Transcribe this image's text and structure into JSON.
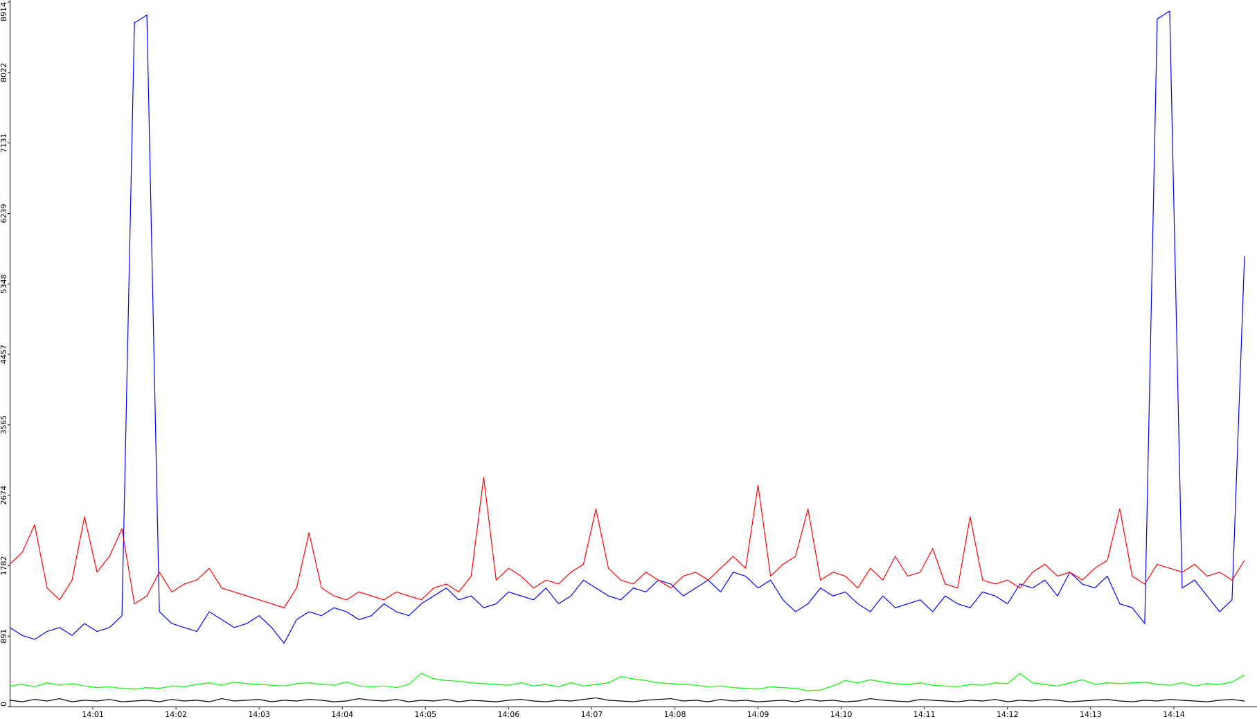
{
  "chart_data": {
    "type": "line",
    "x": [
      0,
      0.15,
      0.3,
      0.45,
      0.6,
      0.75,
      0.9,
      1.05,
      1.2,
      1.35,
      1.5,
      1.65,
      1.8,
      1.95,
      2.1,
      2.25,
      2.4,
      2.55,
      2.7,
      2.85,
      3,
      3.15,
      3.3,
      3.45,
      3.6,
      3.75,
      3.9,
      4.05,
      4.2,
      4.35,
      4.5,
      4.65,
      4.8,
      4.95,
      5.1,
      5.25,
      5.4,
      5.55,
      5.7,
      5.85,
      6,
      6.15,
      6.3,
      6.45,
      6.6,
      6.75,
      6.9,
      7.05,
      7.2,
      7.35,
      7.5,
      7.65,
      7.8,
      7.95,
      8.1,
      8.25,
      8.4,
      8.55,
      8.7,
      8.85,
      9,
      9.15,
      9.3,
      9.45,
      9.6,
      9.75,
      9.9,
      10.05,
      10.2,
      10.35,
      10.5,
      10.65,
      10.8,
      10.95,
      11.1,
      11.25,
      11.4,
      11.55,
      11.7,
      11.85,
      12,
      12.15,
      12.3,
      12.45,
      12.6,
      12.75,
      12.9,
      13.05,
      13.2,
      13.35,
      13.5,
      13.65,
      13.8,
      13.95,
      14.1,
      14.25,
      14.4,
      14.55,
      14.7,
      14.85
    ],
    "series": [
      {
        "color": "#ff0000",
        "values": [
          1800,
          1950,
          2300,
          1500,
          1350,
          1600,
          2400,
          1700,
          1900,
          2250,
          1300,
          1400,
          1700,
          1450,
          1550,
          1600,
          1750,
          1500,
          1450,
          1400,
          1350,
          1300,
          1250,
          1500,
          2200,
          1500,
          1400,
          1350,
          1450,
          1400,
          1350,
          1450,
          1400,
          1350,
          1500,
          1550,
          1450,
          1650,
          2900,
          1600,
          1750,
          1650,
          1500,
          1600,
          1550,
          1700,
          1800,
          2500,
          1750,
          1600,
          1550,
          1700,
          1600,
          1500,
          1650,
          1700,
          1600,
          1750,
          1900,
          1750,
          2800,
          1650,
          1800,
          1900,
          2500,
          1600,
          1700,
          1650,
          1500,
          1750,
          1600,
          1900,
          1650,
          1700,
          2000,
          1550,
          1500,
          2400,
          1600,
          1550,
          1600,
          1500,
          1700,
          1800,
          1650,
          1700,
          1600,
          1750,
          1850,
          2500,
          1650,
          1550,
          1800,
          1750,
          1700,
          1800,
          1650,
          1700,
          1600,
          1850
        ]
      },
      {
        "color": "#0000ff",
        "values": [
          1000,
          900,
          850,
          950,
          1000,
          900,
          1050,
          950,
          1000,
          1150,
          8650,
          8750,
          1200,
          1050,
          1000,
          950,
          1200,
          1100,
          1000,
          1050,
          1150,
          1000,
          800,
          1100,
          1200,
          1150,
          1250,
          1200,
          1100,
          1150,
          1300,
          1200,
          1150,
          1300,
          1400,
          1500,
          1350,
          1400,
          1250,
          1300,
          1450,
          1400,
          1350,
          1500,
          1300,
          1400,
          1600,
          1500,
          1400,
          1350,
          1500,
          1450,
          1600,
          1550,
          1400,
          1500,
          1600,
          1450,
          1700,
          1650,
          1500,
          1600,
          1350,
          1200,
          1300,
          1500,
          1400,
          1450,
          1300,
          1200,
          1400,
          1250,
          1300,
          1350,
          1200,
          1400,
          1300,
          1250,
          1450,
          1400,
          1300,
          1550,
          1500,
          1600,
          1400,
          1700,
          1550,
          1500,
          1650,
          1300,
          1250,
          1050,
          8700,
          8800,
          1500,
          1600,
          1400,
          1200,
          1350,
          5700
        ]
      },
      {
        "color": "#00ff00",
        "values": [
          260,
          280,
          250,
          300,
          270,
          290,
          260,
          240,
          250,
          230,
          220,
          240,
          230,
          260,
          250,
          280,
          300,
          270,
          310,
          290,
          280,
          270,
          260,
          290,
          300,
          280,
          270,
          310,
          260,
          250,
          260,
          240,
          280,
          420,
          350,
          330,
          320,
          300,
          290,
          280,
          270,
          300,
          260,
          280,
          250,
          300,
          260,
          280,
          300,
          380,
          350,
          330,
          300,
          290,
          280,
          270,
          250,
          260,
          240,
          230,
          220,
          250,
          240,
          230,
          200,
          210,
          260,
          330,
          300,
          340,
          310,
          290,
          280,
          300,
          270,
          260,
          250,
          280,
          270,
          300,
          290,
          420,
          300,
          280,
          260,
          300,
          340,
          280,
          300,
          290,
          300,
          310,
          280,
          270,
          300,
          260,
          290,
          280,
          310,
          400
        ]
      },
      {
        "color": "#000000",
        "values": [
          80,
          60,
          90,
          70,
          100,
          60,
          80,
          70,
          90,
          60,
          70,
          80,
          60,
          90,
          70,
          80,
          60,
          100,
          70,
          80,
          90,
          60,
          80,
          70,
          90,
          80,
          60,
          70,
          100,
          80,
          70,
          90,
          60,
          80,
          70,
          90,
          60,
          80,
          70,
          60,
          80,
          90,
          70,
          60,
          80,
          70,
          90,
          110,
          80,
          70,
          60,
          80,
          90,
          100,
          70,
          80,
          60,
          90,
          70,
          80,
          60,
          70,
          80,
          60,
          90,
          70,
          80,
          60,
          70,
          100,
          80,
          70,
          60,
          90,
          80,
          70,
          60,
          80,
          70,
          90,
          60,
          80,
          70,
          90,
          80,
          60,
          70,
          80,
          90,
          70,
          60,
          80,
          70,
          90,
          80,
          70,
          60,
          80,
          90,
          70
        ]
      }
    ],
    "xlim": [
      0,
      15
    ],
    "xticks": [
      {
        "value": 1,
        "label": "14:01"
      },
      {
        "value": 2,
        "label": "14:02"
      },
      {
        "value": 3,
        "label": "14:03"
      },
      {
        "value": 4,
        "label": "14:04"
      },
      {
        "value": 5,
        "label": "14:05"
      },
      {
        "value": 6,
        "label": "14:06"
      },
      {
        "value": 7,
        "label": "14:07"
      },
      {
        "value": 8,
        "label": "14:08"
      },
      {
        "value": 9,
        "label": "14:09"
      },
      {
        "value": 10,
        "label": "14:10"
      },
      {
        "value": 11,
        "label": "14:11"
      },
      {
        "value": 12,
        "label": "14:12"
      },
      {
        "value": 13,
        "label": "14:13"
      },
      {
        "value": 14,
        "label": "14:14"
      }
    ],
    "ylim": [
      0,
      8914
    ],
    "yticks": [
      0,
      891,
      1782,
      2674,
      3565,
      4457,
      5348,
      6239,
      7131,
      8022,
      8914
    ],
    "grid": false
  }
}
